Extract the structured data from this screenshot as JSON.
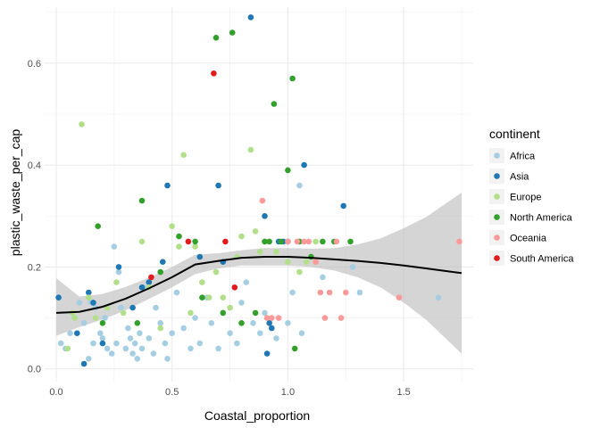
{
  "chart_data": {
    "type": "scatter",
    "title": "",
    "xlabel": "Coastal_proportion",
    "ylabel": "plastic_waste_per_cap",
    "xlim": [
      -0.05,
      1.8
    ],
    "ylim": [
      -0.025,
      0.71
    ],
    "x_ticks": [
      0.0,
      0.5,
      1.0,
      1.5
    ],
    "x_tick_labels": [
      "0.0",
      "0.5",
      "1.0",
      "1.5"
    ],
    "y_ticks": [
      0.0,
      0.2,
      0.4,
      0.6
    ],
    "y_tick_labels": [
      "0.0",
      "0.2",
      "0.4",
      "0.6"
    ],
    "grid": true,
    "legend": {
      "title": "continent",
      "position": "right"
    },
    "series": [
      {
        "name": "Africa",
        "color": "#a6cee3",
        "points": [
          [
            0.01,
            0.14
          ],
          [
            0.02,
            0.05
          ],
          [
            0.04,
            0.04
          ],
          [
            0.06,
            0.07
          ],
          [
            0.08,
            0.1
          ],
          [
            0.1,
            0.13
          ],
          [
            0.12,
            0.09
          ],
          [
            0.14,
            0.02
          ],
          [
            0.15,
            0.13
          ],
          [
            0.16,
            0.05
          ],
          [
            0.17,
            0.12
          ],
          [
            0.19,
            0.07
          ],
          [
            0.2,
            0.06
          ],
          [
            0.21,
            0.1
          ],
          [
            0.22,
            0.04
          ],
          [
            0.24,
            0.03
          ],
          [
            0.25,
            0.24
          ],
          [
            0.26,
            0.05
          ],
          [
            0.27,
            0.19
          ],
          [
            0.28,
            0.12
          ],
          [
            0.3,
            0.04
          ],
          [
            0.31,
            0.08
          ],
          [
            0.32,
            0.06
          ],
          [
            0.33,
            0.03
          ],
          [
            0.34,
            0.05
          ],
          [
            0.35,
            0.02
          ],
          [
            0.36,
            0.07
          ],
          [
            0.37,
            0.04
          ],
          [
            0.38,
            0.16
          ],
          [
            0.4,
            0.06
          ],
          [
            0.42,
            0.03
          ],
          [
            0.43,
            0.12
          ],
          [
            0.45,
            0.09
          ],
          [
            0.47,
            0.05
          ],
          [
            0.48,
            0.02
          ],
          [
            0.5,
            0.07
          ],
          [
            0.52,
            0.15
          ],
          [
            0.55,
            0.08
          ],
          [
            0.58,
            0.04
          ],
          [
            0.6,
            0.1
          ],
          [
            0.62,
            0.05
          ],
          [
            0.65,
            0.14
          ],
          [
            0.67,
            0.09
          ],
          [
            0.7,
            0.04
          ],
          [
            0.72,
            0.11
          ],
          [
            0.75,
            0.07
          ],
          [
            0.78,
            0.05
          ],
          [
            0.8,
            0.13
          ],
          [
            0.82,
            0.17
          ],
          [
            0.85,
            0.09
          ],
          [
            0.88,
            0.07
          ],
          [
            0.9,
            0.11
          ],
          [
            0.95,
            0.06
          ],
          [
            1.0,
            0.09
          ],
          [
            1.02,
            0.15
          ],
          [
            1.05,
            0.36
          ],
          [
            1.06,
            0.07
          ],
          [
            1.1,
            0.22
          ],
          [
            1.15,
            0.18
          ],
          [
            1.28,
            0.2
          ],
          [
            1.31,
            0.15
          ],
          [
            1.65,
            0.14
          ]
        ]
      },
      {
        "name": "Asia",
        "color": "#1f78b4",
        "points": [
          [
            0.01,
            0.14
          ],
          [
            0.09,
            0.07
          ],
          [
            0.12,
            0.01
          ],
          [
            0.14,
            0.15
          ],
          [
            0.16,
            0.13
          ],
          [
            0.2,
            0.05
          ],
          [
            0.27,
            0.2
          ],
          [
            0.33,
            0.12
          ],
          [
            0.37,
            0.16
          ],
          [
            0.4,
            0.17
          ],
          [
            0.46,
            0.21
          ],
          [
            0.48,
            0.36
          ],
          [
            0.62,
            0.22
          ],
          [
            0.7,
            0.36
          ],
          [
            0.72,
            0.21
          ],
          [
            0.84,
            0.69
          ],
          [
            0.9,
            0.3
          ],
          [
            0.91,
            0.03
          ],
          [
            0.92,
            0.09
          ],
          [
            0.93,
            0.08
          ],
          [
            0.96,
            0.25
          ],
          [
            0.98,
            0.25
          ],
          [
            1.0,
            0.25
          ],
          [
            1.07,
            0.4
          ],
          [
            1.24,
            0.32
          ]
        ]
      },
      {
        "name": "Europe",
        "color": "#b2df8a",
        "points": [
          [
            0.05,
            0.04
          ],
          [
            0.07,
            0.11
          ],
          [
            0.08,
            0.1
          ],
          [
            0.11,
            0.48
          ],
          [
            0.14,
            0.14
          ],
          [
            0.17,
            0.1
          ],
          [
            0.22,
            0.12
          ],
          [
            0.26,
            0.17
          ],
          [
            0.29,
            0.11
          ],
          [
            0.37,
            0.25
          ],
          [
            0.4,
            0.16
          ],
          [
            0.45,
            0.08
          ],
          [
            0.5,
            0.28
          ],
          [
            0.53,
            0.24
          ],
          [
            0.55,
            0.42
          ],
          [
            0.58,
            0.11
          ],
          [
            0.6,
            0.24
          ],
          [
            0.63,
            0.17
          ],
          [
            0.66,
            0.14
          ],
          [
            0.69,
            0.19
          ],
          [
            0.72,
            0.14
          ],
          [
            0.75,
            0.12
          ],
          [
            0.78,
            0.22
          ],
          [
            0.8,
            0.26
          ],
          [
            0.84,
            0.43
          ],
          [
            0.86,
            0.27
          ],
          [
            0.88,
            0.23
          ],
          [
            0.9,
            0.25
          ],
          [
            0.95,
            0.23
          ],
          [
            1.0,
            0.21
          ],
          [
            1.05,
            0.19
          ],
          [
            1.08,
            0.21
          ],
          [
            1.12,
            0.25
          ]
        ]
      },
      {
        "name": "North America",
        "color": "#33a02c",
        "points": [
          [
            0.18,
            0.28
          ],
          [
            0.2,
            0.09
          ],
          [
            0.35,
            0.09
          ],
          [
            0.37,
            0.33
          ],
          [
            0.45,
            0.19
          ],
          [
            0.53,
            0.26
          ],
          [
            0.6,
            0.25
          ],
          [
            0.63,
            0.14
          ],
          [
            0.69,
            0.65
          ],
          [
            0.72,
            0.11
          ],
          [
            0.76,
            0.66
          ],
          [
            0.8,
            0.09
          ],
          [
            0.86,
            0.11
          ],
          [
            0.9,
            0.25
          ],
          [
            0.92,
            0.25
          ],
          [
            0.94,
            0.52
          ],
          [
            0.97,
            0.25
          ],
          [
            1.0,
            0.39
          ],
          [
            1.02,
            0.57
          ],
          [
            1.03,
            0.04
          ],
          [
            1.05,
            0.25
          ],
          [
            1.1,
            0.22
          ],
          [
            1.15,
            0.25
          ],
          [
            1.2,
            0.25
          ],
          [
            1.27,
            0.25
          ]
        ]
      },
      {
        "name": "Oceania",
        "color": "#fb9a99",
        "points": [
          [
            0.89,
            0.33
          ],
          [
            0.91,
            0.1
          ],
          [
            0.93,
            0.1
          ],
          [
            0.96,
            0.1
          ],
          [
            1.0,
            0.25
          ],
          [
            1.04,
            0.25
          ],
          [
            1.07,
            0.25
          ],
          [
            1.09,
            0.25
          ],
          [
            1.12,
            0.21
          ],
          [
            1.14,
            0.15
          ],
          [
            1.16,
            0.1
          ],
          [
            1.18,
            0.15
          ],
          [
            1.21,
            0.25
          ],
          [
            1.23,
            0.1
          ],
          [
            1.25,
            0.15
          ],
          [
            1.48,
            0.14
          ],
          [
            1.74,
            0.25
          ]
        ]
      },
      {
        "name": "South America",
        "color": "#e31a1c",
        "points": [
          [
            0.41,
            0.18
          ],
          [
            0.57,
            0.25
          ],
          [
            0.68,
            0.58
          ],
          [
            0.73,
            0.25
          ],
          [
            0.77,
            0.16
          ]
        ]
      }
    ],
    "smooth": {
      "x": [
        0.0,
        0.1,
        0.2,
        0.3,
        0.4,
        0.5,
        0.6,
        0.7,
        0.8,
        0.9,
        1.0,
        1.1,
        1.2,
        1.3,
        1.4,
        1.5,
        1.6,
        1.75
      ],
      "y": [
        0.11,
        0.112,
        0.122,
        0.138,
        0.158,
        0.18,
        0.205,
        0.212,
        0.218,
        0.22,
        0.22,
        0.218,
        0.215,
        0.212,
        0.208,
        0.203,
        0.197,
        0.188
      ],
      "lower": [
        0.065,
        0.082,
        0.097,
        0.115,
        0.137,
        0.16,
        0.186,
        0.197,
        0.203,
        0.203,
        0.203,
        0.2,
        0.193,
        0.18,
        0.16,
        0.13,
        0.095,
        0.03
      ],
      "upper": [
        0.178,
        0.142,
        0.147,
        0.161,
        0.179,
        0.2,
        0.224,
        0.227,
        0.233,
        0.237,
        0.237,
        0.236,
        0.237,
        0.244,
        0.256,
        0.276,
        0.299,
        0.346
      ],
      "line_color": "#000000",
      "band_color": "#bebebe"
    }
  }
}
